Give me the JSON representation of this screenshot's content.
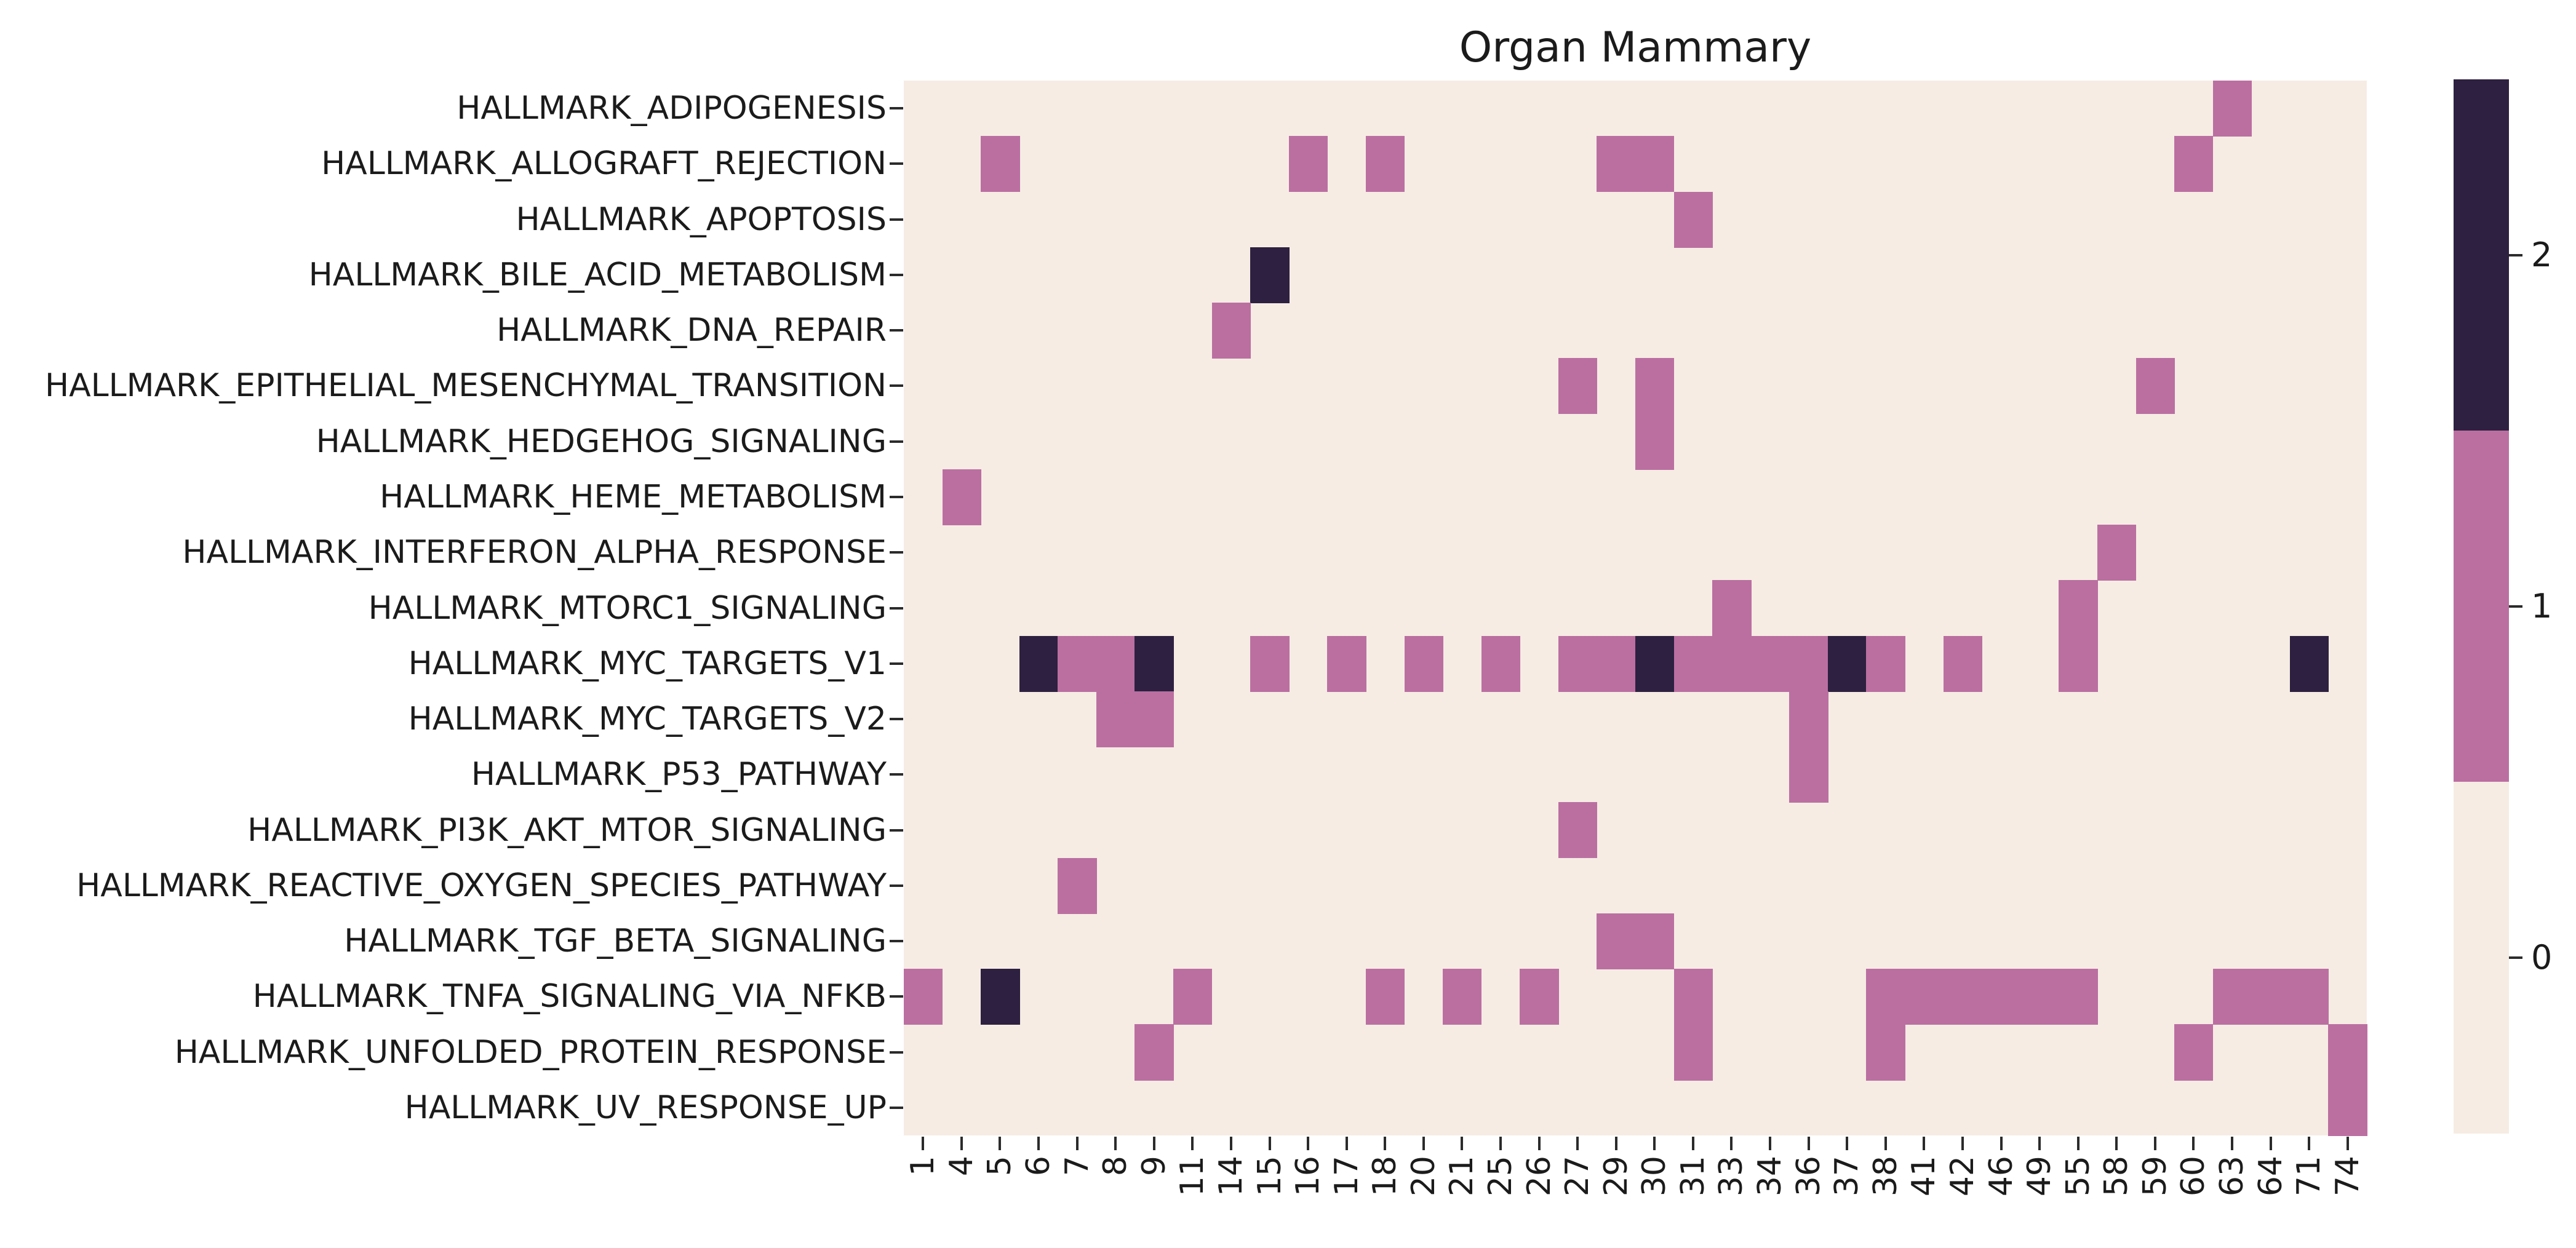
{
  "title": "Organ Mammary",
  "chart_data": {
    "type": "heatmap",
    "title": "Organ Mammary",
    "rows": [
      "HALLMARK_ADIPOGENESIS",
      "HALLMARK_ALLOGRAFT_REJECTION",
      "HALLMARK_APOPTOSIS",
      "HALLMARK_BILE_ACID_METABOLISM",
      "HALLMARK_DNA_REPAIR",
      "HALLMARK_EPITHELIAL_MESENCHYMAL_TRANSITION",
      "HALLMARK_HEDGEHOG_SIGNALING",
      "HALLMARK_HEME_METABOLISM",
      "HALLMARK_INTERFERON_ALPHA_RESPONSE",
      "HALLMARK_MTORC1_SIGNALING",
      "HALLMARK_MYC_TARGETS_V1",
      "HALLMARK_MYC_TARGETS_V2",
      "HALLMARK_P53_PATHWAY",
      "HALLMARK_PI3K_AKT_MTOR_SIGNALING",
      "HALLMARK_REACTIVE_OXYGEN_SPECIES_PATHWAY",
      "HALLMARK_TGF_BETA_SIGNALING",
      "HALLMARK_TNFA_SIGNALING_VIA_NFKB",
      "HALLMARK_UNFOLDED_PROTEIN_RESPONSE",
      "HALLMARK_UV_RESPONSE_UP"
    ],
    "columns": [
      "1",
      "4",
      "5",
      "6",
      "7",
      "8",
      "9",
      "11",
      "14",
      "15",
      "16",
      "17",
      "18",
      "20",
      "21",
      "25",
      "26",
      "27",
      "29",
      "30",
      "31",
      "33",
      "34",
      "36",
      "37",
      "38",
      "41",
      "42",
      "46",
      "49",
      "55",
      "58",
      "59",
      "60",
      "63",
      "64",
      "71",
      "74"
    ],
    "values_domain": [
      0,
      1,
      2
    ],
    "default_value": 0,
    "cells_rcv": [
      [
        0,
        34,
        1
      ],
      [
        1,
        2,
        1
      ],
      [
        1,
        10,
        1
      ],
      [
        1,
        12,
        1
      ],
      [
        1,
        18,
        1
      ],
      [
        1,
        19,
        1
      ],
      [
        1,
        33,
        1
      ],
      [
        2,
        20,
        1
      ],
      [
        3,
        9,
        2
      ],
      [
        4,
        8,
        1
      ],
      [
        5,
        17,
        1
      ],
      [
        5,
        19,
        1
      ],
      [
        5,
        32,
        1
      ],
      [
        6,
        19,
        1
      ],
      [
        7,
        1,
        1
      ],
      [
        8,
        31,
        1
      ],
      [
        9,
        21,
        1
      ],
      [
        9,
        30,
        1
      ],
      [
        10,
        3,
        2
      ],
      [
        10,
        4,
        1
      ],
      [
        10,
        5,
        1
      ],
      [
        10,
        6,
        2
      ],
      [
        10,
        9,
        1
      ],
      [
        10,
        11,
        1
      ],
      [
        10,
        13,
        1
      ],
      [
        10,
        15,
        1
      ],
      [
        10,
        17,
        1
      ],
      [
        10,
        18,
        1
      ],
      [
        10,
        19,
        2
      ],
      [
        10,
        20,
        1
      ],
      [
        10,
        21,
        1
      ],
      [
        10,
        22,
        1
      ],
      [
        10,
        23,
        1
      ],
      [
        10,
        24,
        2
      ],
      [
        10,
        25,
        1
      ],
      [
        10,
        27,
        1
      ],
      [
        10,
        30,
        1
      ],
      [
        10,
        36,
        2
      ],
      [
        11,
        5,
        1
      ],
      [
        11,
        6,
        1
      ],
      [
        11,
        23,
        1
      ],
      [
        12,
        23,
        1
      ],
      [
        13,
        17,
        1
      ],
      [
        14,
        4,
        1
      ],
      [
        15,
        18,
        1
      ],
      [
        15,
        19,
        1
      ],
      [
        16,
        0,
        1
      ],
      [
        16,
        2,
        2
      ],
      [
        16,
        7,
        1
      ],
      [
        16,
        12,
        1
      ],
      [
        16,
        14,
        1
      ],
      [
        16,
        16,
        1
      ],
      [
        16,
        20,
        1
      ],
      [
        16,
        25,
        1
      ],
      [
        16,
        26,
        1
      ],
      [
        16,
        27,
        1
      ],
      [
        16,
        28,
        1
      ],
      [
        16,
        29,
        1
      ],
      [
        16,
        30,
        1
      ],
      [
        16,
        34,
        1
      ],
      [
        16,
        35,
        1
      ],
      [
        16,
        36,
        1
      ],
      [
        17,
        6,
        1
      ],
      [
        17,
        20,
        1
      ],
      [
        17,
        25,
        1
      ],
      [
        17,
        33,
        1
      ],
      [
        17,
        37,
        1
      ],
      [
        18,
        37,
        1
      ]
    ],
    "colors": {
      "0": "#f6ece4",
      "1": "#bb6fa1",
      "2": "#2d2040"
    },
    "colorbar": {
      "orientation": "vertical",
      "position": "right",
      "segment_values_top_to_bottom": [
        2,
        1,
        0
      ],
      "tick_labels_top_to_bottom": [
        "2",
        "1",
        "0"
      ]
    },
    "grid": false,
    "xlabel": "",
    "ylabel": ""
  }
}
